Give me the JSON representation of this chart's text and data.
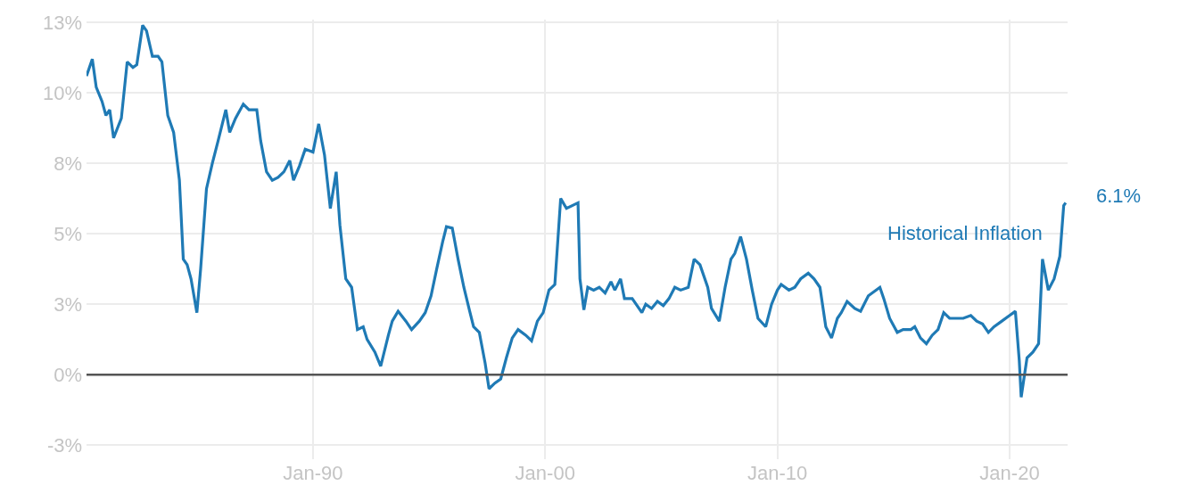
{
  "chart_data": {
    "type": "line",
    "x": [
      "1980-04",
      "1980-07",
      "1980-09",
      "1980-12",
      "1981-02",
      "1981-04",
      "1981-06",
      "1981-10",
      "1982-01",
      "1982-04",
      "1982-06",
      "1982-09",
      "1982-11",
      "1983-02",
      "1983-05",
      "1983-07",
      "1983-10",
      "1984-01",
      "1984-04",
      "1984-06",
      "1984-08",
      "1984-10",
      "1985-01",
      "1985-03",
      "1985-06",
      "1985-09",
      "1985-12",
      "1986-04",
      "1986-06",
      "1986-09",
      "1987-01",
      "1987-04",
      "1987-08",
      "1987-10",
      "1988-01",
      "1988-04",
      "1988-07",
      "1988-10",
      "1989-01",
      "1989-03",
      "1989-06",
      "1989-09",
      "1990-01",
      "1990-04",
      "1990-07",
      "1990-10",
      "1991-01",
      "1991-03",
      "1991-06",
      "1991-09",
      "1991-12",
      "1992-03",
      "1992-05",
      "1992-09",
      "1992-12",
      "1993-04",
      "1993-06",
      "1993-09",
      "1994-01",
      "1994-04",
      "1994-08",
      "1994-11",
      "1995-02",
      "1995-05",
      "1995-08",
      "1995-10",
      "1996-01",
      "1996-04",
      "1996-07",
      "1996-10",
      "1996-12",
      "1997-03",
      "1997-06",
      "1997-08",
      "1997-11",
      "1998-02",
      "1998-05",
      "1998-08",
      "1998-11",
      "1999-03",
      "1999-06",
      "1999-09",
      "1999-12",
      "2000-03",
      "2000-06",
      "2000-09",
      "2000-12",
      "2001-03",
      "2001-06",
      "2001-07",
      "2001-09",
      "2001-11",
      "2002-02",
      "2002-05",
      "2002-08",
      "2002-11",
      "2003-01",
      "2003-04",
      "2003-06",
      "2003-10",
      "2003-12",
      "2004-03",
      "2004-05",
      "2004-08",
      "2004-11",
      "2005-02",
      "2005-05",
      "2005-08",
      "2005-11",
      "2006-03",
      "2006-06",
      "2006-09",
      "2007-01",
      "2007-03",
      "2007-07",
      "2007-10",
      "2008-01",
      "2008-03",
      "2008-06",
      "2008-09",
      "2008-12",
      "2009-03",
      "2009-07",
      "2009-10",
      "2010-01",
      "2010-03",
      "2010-07",
      "2010-10",
      "2011-01",
      "2011-05",
      "2011-08",
      "2011-11",
      "2012-02",
      "2012-05",
      "2012-08",
      "2012-10",
      "2013-01",
      "2013-05",
      "2013-08",
      "2013-12",
      "2014-02",
      "2014-06",
      "2014-08",
      "2014-11",
      "2015-03",
      "2015-06",
      "2015-10",
      "2015-12",
      "2016-03",
      "2016-06",
      "2016-09",
      "2016-12",
      "2017-03",
      "2017-06",
      "2017-10",
      "2018-01",
      "2018-05",
      "2018-08",
      "2018-11",
      "2019-02",
      "2019-05",
      "2019-09",
      "2020-01",
      "2020-04",
      "2020-06",
      "2020-07",
      "2020-10",
      "2021-01",
      "2021-04",
      "2021-06",
      "2021-09",
      "2021-12",
      "2022-03",
      "2022-05",
      "2022-06"
    ],
    "series": [
      {
        "name": "Historical Inflation",
        "color": "#1f7ab5",
        "values": [
          10.6,
          11.2,
          10.2,
          9.7,
          9.2,
          9.4,
          8.4,
          9.1,
          11.1,
          10.9,
          11.0,
          12.4,
          12.2,
          11.3,
          11.3,
          11.1,
          9.2,
          8.6,
          6.9,
          4.1,
          3.9,
          3.4,
          2.2,
          3.75,
          6.6,
          7.5,
          8.3,
          9.4,
          8.6,
          9.1,
          9.6,
          9.4,
          9.4,
          8.3,
          7.2,
          6.9,
          7.0,
          7.2,
          7.6,
          6.9,
          7.4,
          8.0,
          7.9,
          8.9,
          7.8,
          5.9,
          7.2,
          5.3,
          3.4,
          3.1,
          1.6,
          1.7,
          1.25,
          0.8,
          0.3,
          1.4,
          1.9,
          2.25,
          1.9,
          1.6,
          1.9,
          2.2,
          2.8,
          3.75,
          4.7,
          5.25,
          5.2,
          4.1,
          3.1,
          2.25,
          1.7,
          1.5,
          0.4,
          -0.5,
          -0.3,
          -0.15,
          0.6,
          1.3,
          1.6,
          1.4,
          1.2,
          1.9,
          2.2,
          3.0,
          3.2,
          6.25,
          5.9,
          6.0,
          6.1,
          3.4,
          2.3,
          3.1,
          3.0,
          3.1,
          2.9,
          3.3,
          3.0,
          3.4,
          2.7,
          2.7,
          2.5,
          2.2,
          2.5,
          2.35,
          2.6,
          2.45,
          2.7,
          3.1,
          3.0,
          3.1,
          4.1,
          3.9,
          3.1,
          2.35,
          1.9,
          3.1,
          4.1,
          4.3,
          4.9,
          4.1,
          3.0,
          2.0,
          1.7,
          2.5,
          3.0,
          3.2,
          3.0,
          3.1,
          3.4,
          3.6,
          3.4,
          3.1,
          1.7,
          1.3,
          2.0,
          2.2,
          2.6,
          2.35,
          2.25,
          2.8,
          2.9,
          3.1,
          2.7,
          2.0,
          1.5,
          1.6,
          1.6,
          1.7,
          1.3,
          1.1,
          1.4,
          1.6,
          2.2,
          2.0,
          2.0,
          2.0,
          2.1,
          1.9,
          1.8,
          1.5,
          1.7,
          1.9,
          2.1,
          2.25,
          0.5,
          -0.8,
          0.6,
          0.8,
          1.1,
          4.1,
          3.0,
          3.4,
          4.2,
          6.0,
          6.1
        ]
      }
    ],
    "annotations": [
      {
        "text": "6.1%",
        "x": "2022-06",
        "y": 6.1
      }
    ],
    "xlim": [
      "1980-04",
      "2022-07"
    ],
    "xticks": [
      {
        "value": "1990-01",
        "label": "Jan-90"
      },
      {
        "value": "2000-01",
        "label": "Jan-00"
      },
      {
        "value": "2010-01",
        "label": "Jan-10"
      },
      {
        "value": "2020-01",
        "label": "Jan-20"
      }
    ],
    "ylim": [
      -3,
      12.6
    ],
    "yticks": [
      {
        "value": 12.5,
        "label": "13%"
      },
      {
        "value": 10,
        "label": "10%"
      },
      {
        "value": 7.5,
        "label": "8%"
      },
      {
        "value": 5,
        "label": "5%"
      },
      {
        "value": 2.5,
        "label": "3%"
      },
      {
        "value": 0,
        "label": "0%"
      },
      {
        "value": -2.5,
        "label": "-3%"
      }
    ],
    "ref_lines": [
      {
        "axis": "y",
        "value": 0,
        "color": "#555555"
      }
    ],
    "grid": true,
    "legend": false,
    "marker": "none",
    "line_style": "solid"
  }
}
